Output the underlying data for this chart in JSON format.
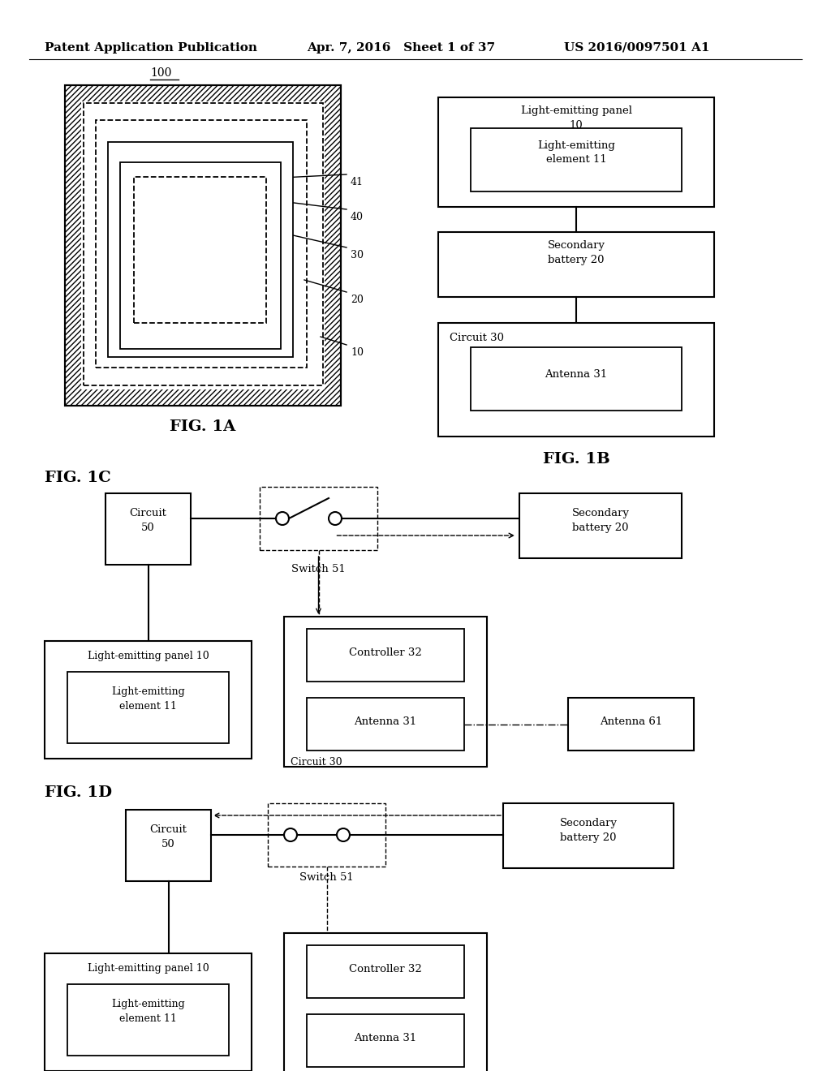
{
  "title_left": "Patent Application Publication",
  "title_mid": "Apr. 7, 2016   Sheet 1 of 37",
  "title_right": "US 2016/0097501 A1",
  "bg_color": "#ffffff"
}
